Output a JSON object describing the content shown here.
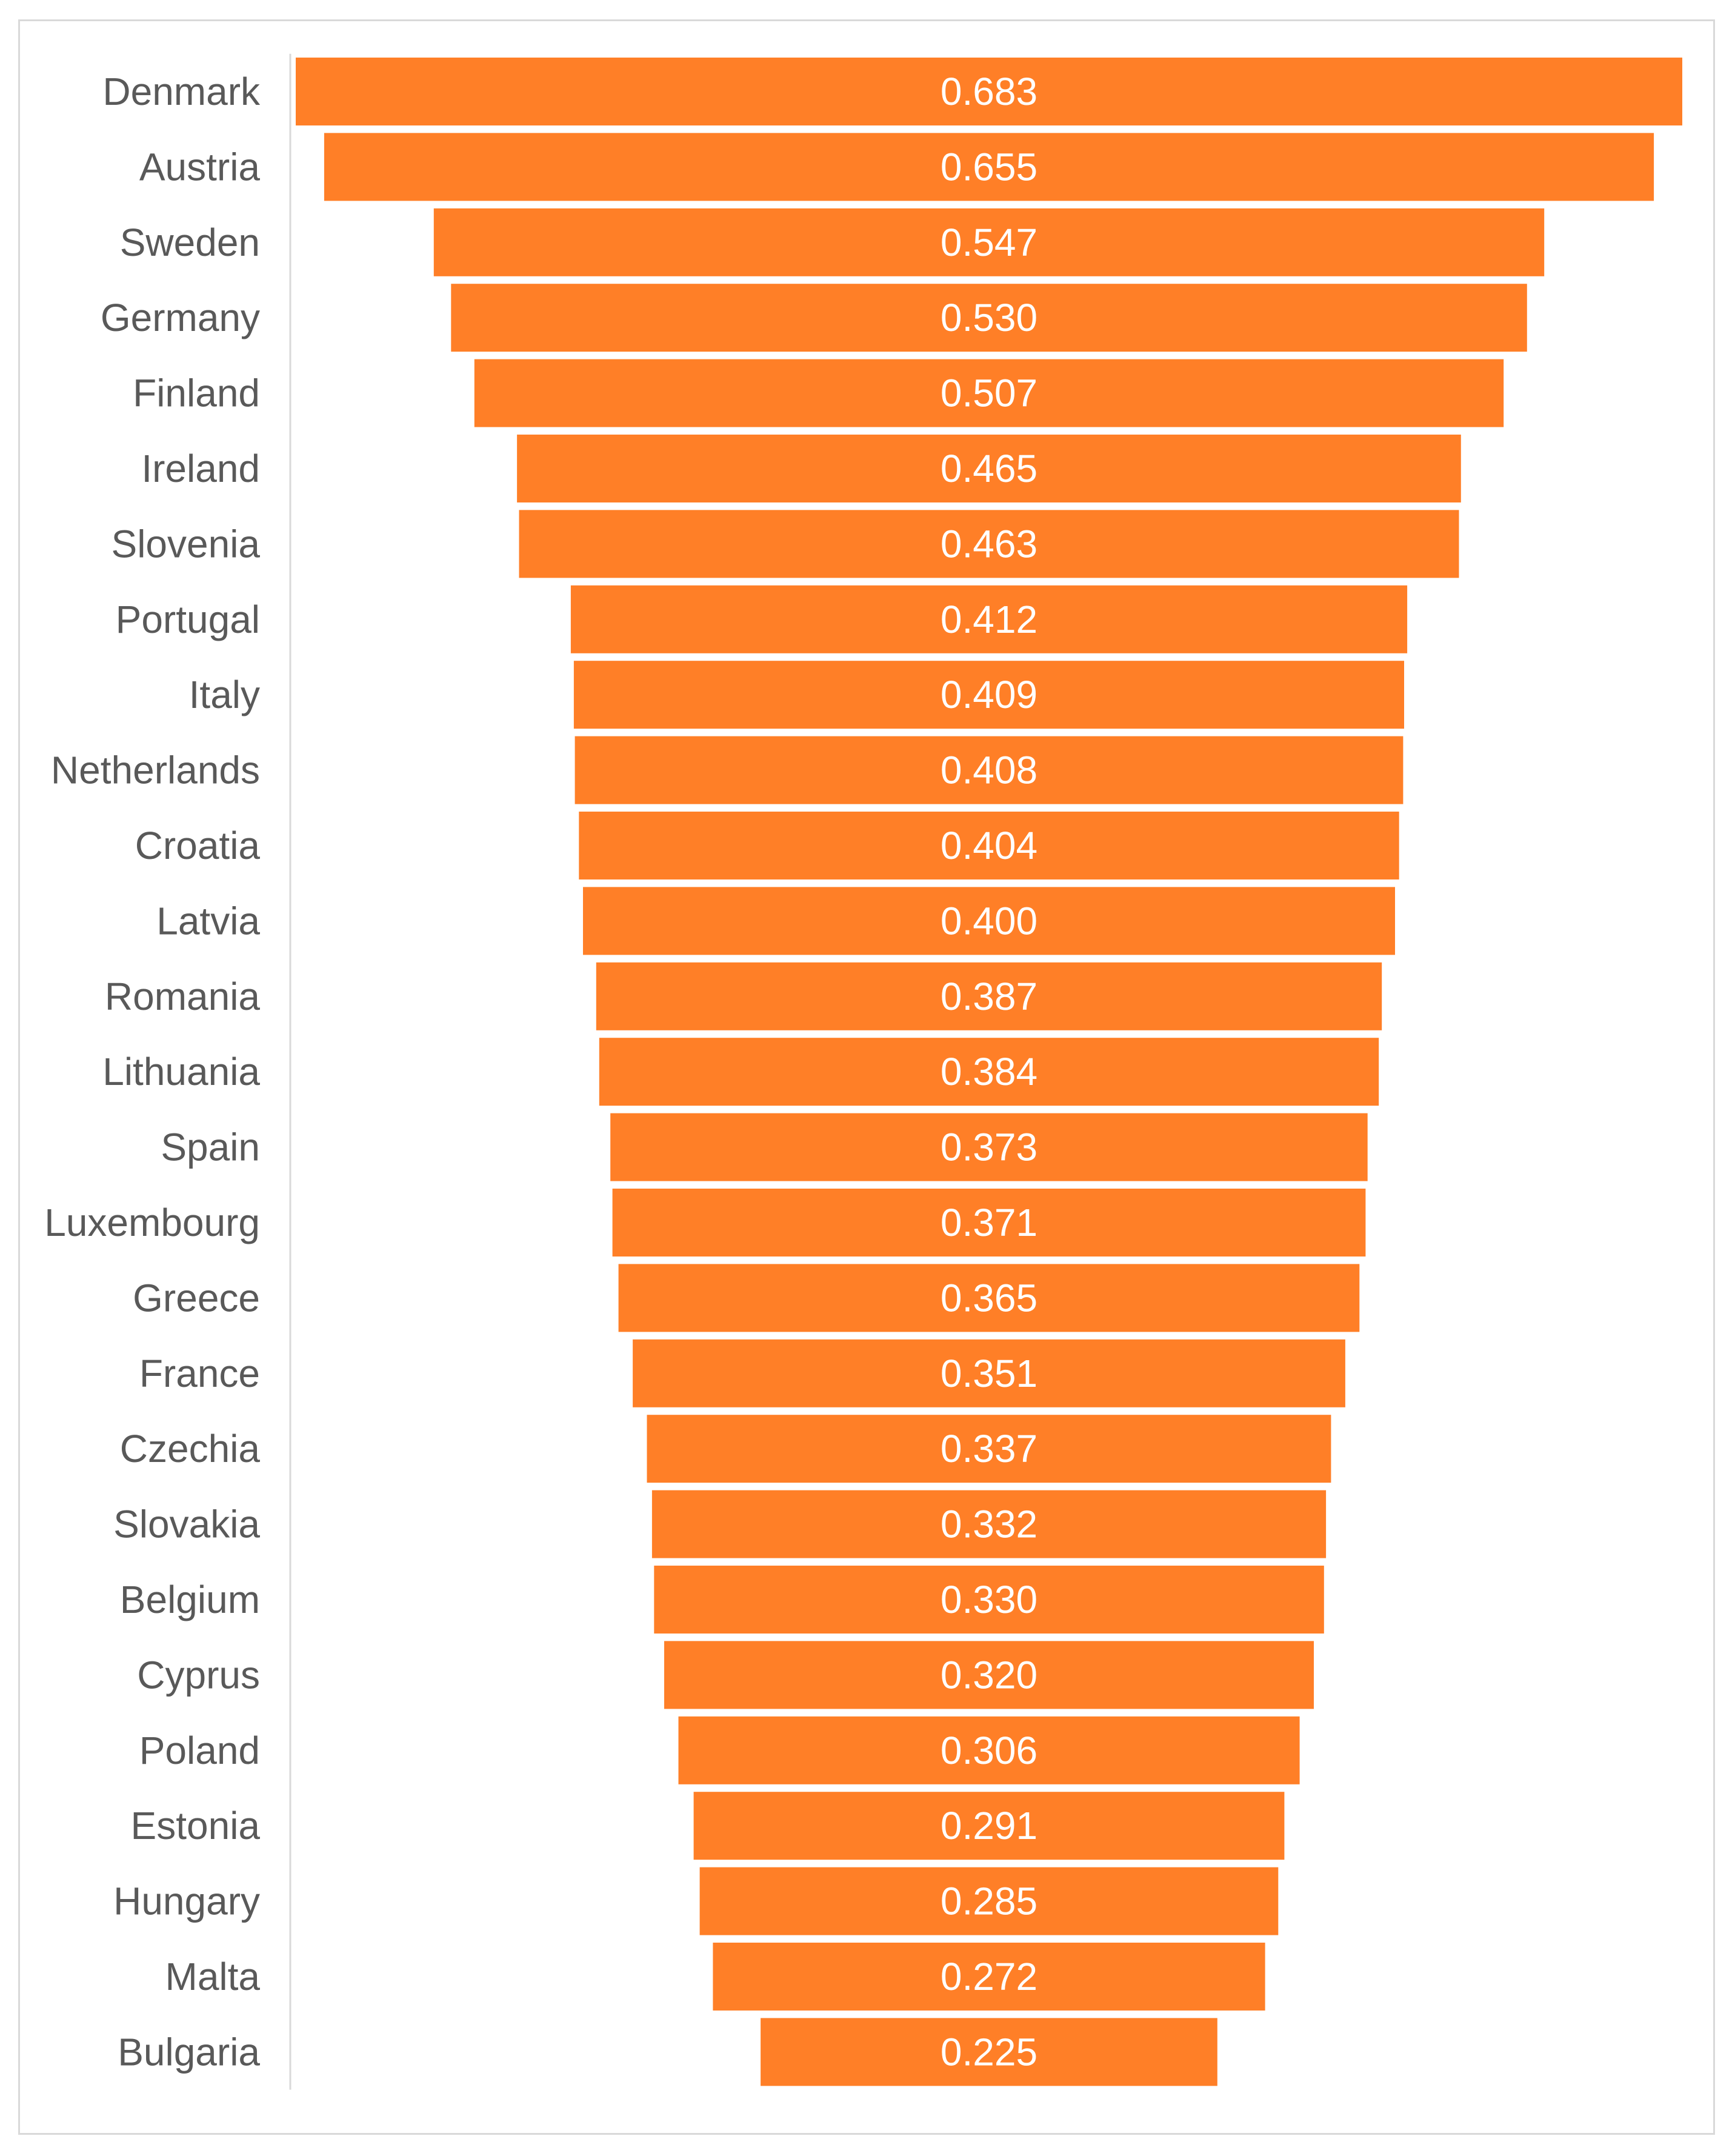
{
  "chart_data": {
    "type": "bar",
    "orientation": "horizontal",
    "alignment": "centered",
    "title": "",
    "xlabel": "",
    "ylabel": "",
    "bar_color": "#FF7F27",
    "category_label_color": "#595959",
    "value_label_color": "#FFFFFF",
    "grid": false,
    "legend": "none",
    "categories": [
      "Denmark",
      "Austria",
      "Sweden",
      "Germany",
      "Finland",
      "Ireland",
      "Slovenia",
      "Portugal",
      "Italy",
      "Netherlands",
      "Croatia",
      "Latvia",
      "Romania",
      "Lithuania",
      "Spain",
      "Luxembourg",
      "Greece",
      "France",
      "Czechia",
      "Slovakia",
      "Belgium",
      "Cyprus",
      "Poland",
      "Estonia",
      "Hungary",
      "Malta",
      "Bulgaria"
    ],
    "values": [
      0.683,
      0.655,
      0.547,
      0.53,
      0.507,
      0.465,
      0.463,
      0.412,
      0.409,
      0.408,
      0.404,
      0.4,
      0.387,
      0.384,
      0.373,
      0.371,
      0.365,
      0.351,
      0.337,
      0.332,
      0.33,
      0.32,
      0.306,
      0.291,
      0.285,
      0.272,
      0.225
    ],
    "value_labels": [
      "0.683",
      "0.655",
      "0.547",
      "0.530",
      "0.507",
      "0.465",
      "0.463",
      "0.412",
      "0.409",
      "0.408",
      "0.404",
      "0.400",
      "0.387",
      "0.384",
      "0.373",
      "0.371",
      "0.365",
      "0.351",
      "0.337",
      "0.332",
      "0.330",
      "0.320",
      "0.306",
      "0.291",
      "0.285",
      "0.272",
      "0.225"
    ]
  }
}
